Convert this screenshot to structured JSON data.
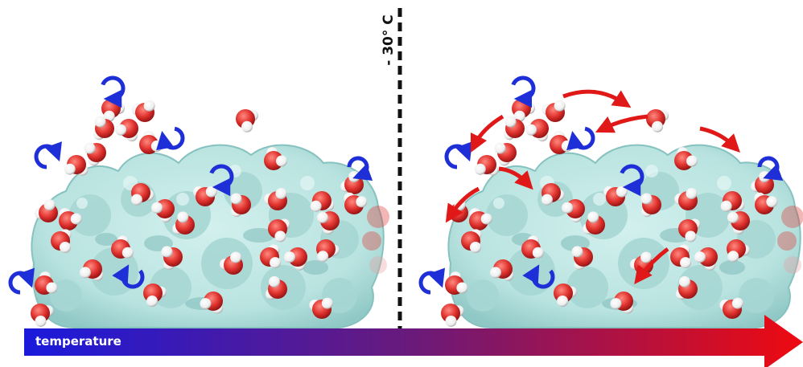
{
  "threshold": {
    "label": "- 30° C"
  },
  "temperature_bar": {
    "label": "temperature",
    "color_start": "#1a1adc",
    "color_mid": "#6a1a7a",
    "color_end": "#ee0a10"
  },
  "colors": {
    "protein_surface": "#b9e3e0",
    "protein_shadow": "#7fbcba",
    "water_oxygen": "#e0322e",
    "water_hydrogen": "#f4f4f4",
    "rotation_arrow": "#1f2fd8",
    "diffusion_arrow": "#e01818",
    "dashed_line": "#111111"
  },
  "panels": [
    {
      "name": "below-threshold",
      "water_motion": [
        "rotation-icon"
      ]
    },
    {
      "name": "above-threshold",
      "water_motion": [
        "rotation-icon",
        "diffusion-arrow-icon"
      ]
    }
  ]
}
